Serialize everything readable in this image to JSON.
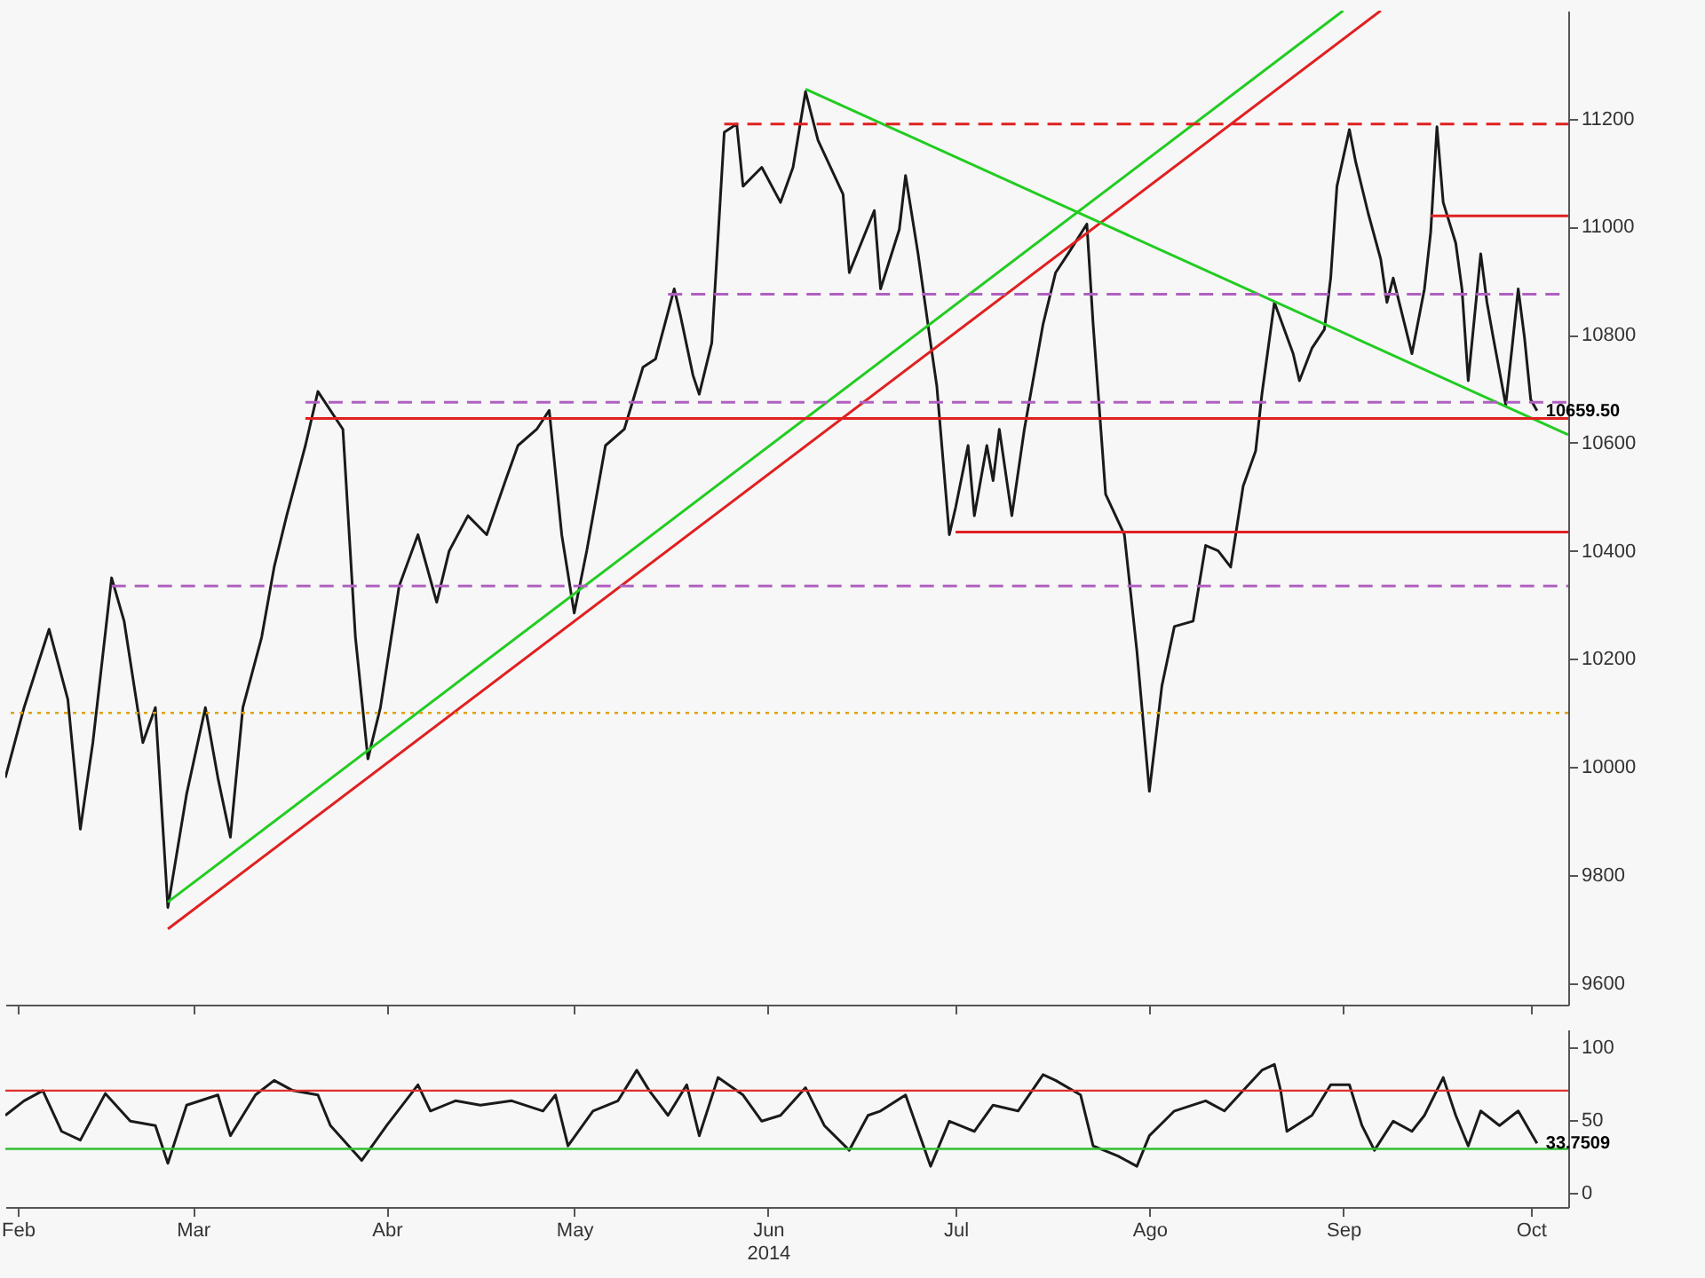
{
  "chart_data": [
    {
      "type": "line",
      "tick_labels": "y",
      "xlim": [
        "2014-01-30",
        "2014-10-07"
      ],
      "ylim": [
        9560,
        11400
      ],
      "xticks": [
        {
          "value": "2014-02-01",
          "label": null
        },
        {
          "value": "2014-03-01",
          "label": null
        },
        {
          "value": "2014-04-01",
          "label": null
        },
        {
          "value": "2014-05-01",
          "label": null
        },
        {
          "value": "2014-06-01",
          "label": null
        },
        {
          "value": "2014-07-01",
          "label": null
        },
        {
          "value": "2014-08-01",
          "label": null
        },
        {
          "value": "2014-09-01",
          "label": null
        },
        {
          "value": "2014-10-01",
          "label": null
        }
      ],
      "yticks": [
        9600,
        9800,
        10000,
        10200,
        10400,
        10600,
        10800,
        11000,
        11200
      ],
      "series": [
        {
          "color": "#1a1a1a",
          "x": [
            "2014-01-30",
            "2014-02-02",
            "2014-02-06",
            "2014-02-09",
            "2014-02-11",
            "2014-02-13",
            "2014-02-16",
            "2014-02-18",
            "2014-02-21",
            "2014-02-23",
            "2014-02-25",
            "2014-02-28",
            "2014-03-03",
            "2014-03-05",
            "2014-03-07",
            "2014-03-09",
            "2014-03-12",
            "2014-03-14",
            "2014-03-16",
            "2014-03-19",
            "2014-03-21",
            "2014-03-25",
            "2014-03-27",
            "2014-03-29",
            "2014-03-31",
            "2014-04-03",
            "2014-04-06",
            "2014-04-09",
            "2014-04-11",
            "2014-04-14",
            "2014-04-17",
            "2014-04-20",
            "2014-04-22",
            "2014-04-25",
            "2014-04-27",
            "2014-04-29",
            "2014-05-01",
            "2014-05-03",
            "2014-05-06",
            "2014-05-09",
            "2014-05-12",
            "2014-05-14",
            "2014-05-17",
            "2014-05-18",
            "2014-05-20",
            "2014-05-21",
            "2014-05-23",
            "2014-05-24",
            "2014-05-25",
            "2014-05-27",
            "2014-05-28",
            "2014-05-31",
            "2014-06-03",
            "2014-06-05",
            "2014-06-07",
            "2014-06-09",
            "2014-06-13",
            "2014-06-14",
            "2014-06-18",
            "2014-06-19",
            "2014-06-22",
            "2014-06-23",
            "2014-06-25",
            "2014-06-27",
            "2014-06-28",
            "2014-06-30",
            "2014-07-01",
            "2014-07-03",
            "2014-07-04",
            "2014-07-06",
            "2014-07-07",
            "2014-07-08",
            "2014-07-10",
            "2014-07-12",
            "2014-07-15",
            "2014-07-17",
            "2014-07-19",
            "2014-07-22",
            "2014-07-23",
            "2014-07-25",
            "2014-07-28",
            "2014-07-30",
            "2014-08-01",
            "2014-08-03",
            "2014-08-05",
            "2014-08-08",
            "2014-08-10",
            "2014-08-12",
            "2014-08-14",
            "2014-08-16",
            "2014-08-18",
            "2014-08-19",
            "2014-08-21",
            "2014-08-24",
            "2014-08-25",
            "2014-08-27",
            "2014-08-29",
            "2014-08-30",
            "2014-08-31",
            "2014-09-02",
            "2014-09-03",
            "2014-09-05",
            "2014-09-07",
            "2014-09-08",
            "2014-09-09",
            "2014-09-12",
            "2014-09-14",
            "2014-09-15",
            "2014-09-16",
            "2014-09-17",
            "2014-09-19",
            "2014-09-20",
            "2014-09-21",
            "2014-09-23",
            "2014-09-24",
            "2014-09-25",
            "2014-09-27",
            "2014-09-28",
            "2014-09-29",
            "2014-09-30",
            "2014-10-01",
            "2014-10-02"
          ],
          "values": [
            9980,
            10110,
            10255,
            10125,
            9885,
            10045,
            10350,
            10270,
            10045,
            10110,
            9740,
            9950,
            10110,
            9980,
            9870,
            10110,
            10240,
            10370,
            10465,
            10595,
            10695,
            10625,
            10240,
            10015,
            10110,
            10335,
            10430,
            10305,
            10400,
            10465,
            10430,
            10530,
            10595,
            10625,
            10660,
            10430,
            10285,
            10400,
            10595,
            10625,
            10740,
            10755,
            10885,
            10835,
            10725,
            10690,
            10785,
            10980,
            11175,
            11190,
            11075,
            11110,
            11045,
            11110,
            11250,
            11160,
            11060,
            10915,
            11030,
            10885,
            10995,
            11095,
            10950,
            10785,
            10705,
            10430,
            10480,
            10595,
            10465,
            10595,
            10530,
            10625,
            10465,
            10625,
            10820,
            10915,
            10950,
            11005,
            10820,
            10505,
            10430,
            10215,
            9955,
            10150,
            10260,
            10270,
            10410,
            10400,
            10370,
            10520,
            10585,
            10690,
            10860,
            10765,
            10715,
            10775,
            10810,
            10905,
            11075,
            11180,
            11120,
            11025,
            10940,
            10860,
            10905,
            10765,
            10885,
            10990,
            11185,
            11045,
            10970,
            10885,
            10715,
            10950,
            10860,
            10795,
            10670,
            10775,
            10885,
            10795,
            10680,
            10659.5
          ],
          "value_labels": [
            null,
            null,
            null,
            null,
            null,
            null,
            null,
            null,
            null,
            null,
            null,
            null,
            null,
            null,
            null,
            null,
            null,
            null,
            null,
            null,
            null,
            null,
            null,
            null,
            null,
            null,
            null,
            null,
            null,
            null,
            null,
            null,
            null,
            null,
            null,
            null,
            null,
            null,
            null,
            null,
            null,
            null,
            null,
            null,
            null,
            null,
            null,
            null,
            null,
            null,
            null,
            null,
            null,
            null,
            null,
            null,
            null,
            null,
            null,
            null,
            null,
            null,
            null,
            null,
            null,
            null,
            null,
            null,
            null,
            null,
            null,
            null,
            null,
            null,
            null,
            null,
            null,
            null,
            null,
            null,
            null,
            null,
            null,
            null,
            null,
            null,
            null,
            null,
            null,
            null,
            null,
            null,
            null,
            null,
            null,
            null,
            null,
            null,
            null,
            null,
            null,
            null,
            null,
            null,
            null,
            null,
            null,
            null,
            null,
            null,
            null,
            null,
            null,
            null,
            null,
            null,
            null,
            null,
            null,
            null,
            null,
            "10659.50"
          ]
        },
        {
          "color": "#22cc22",
          "x": [
            "2014-02-25",
            "2014-09-01"
          ],
          "values": [
            9750,
            11400
          ]
        },
        {
          "color": "#e02020",
          "x": [
            "2014-02-25",
            "2014-09-07"
          ],
          "values": [
            9700,
            11400
          ]
        },
        {
          "color": "#22cc22",
          "x": [
            "2014-06-07",
            "2014-10-07"
          ],
          "values": [
            11255,
            10615
          ]
        },
        {
          "color": "#e02020",
          "line_style": "dashed",
          "x": [
            "2014-05-25",
            "2014-10-07"
          ],
          "values": [
            11190,
            11190
          ]
        },
        {
          "color": "#e02020",
          "x": [
            "2014-09-15",
            "2014-10-07"
          ],
          "values": [
            11020,
            11020
          ]
        },
        {
          "color": "#b060c0",
          "line_style": "dashed",
          "x": [
            "2014-05-16",
            "2014-10-07"
          ],
          "values": [
            10875,
            10875
          ]
        },
        {
          "color": "#b060c0",
          "line_style": "dashed",
          "x": [
            "2014-03-19",
            "2014-10-07"
          ],
          "values": [
            10675,
            10675
          ]
        },
        {
          "color": "#e02020",
          "x": [
            "2014-03-19",
            "2014-10-07"
          ],
          "values": [
            10645,
            10645
          ]
        },
        {
          "color": "#e02020",
          "x": [
            "2014-07-01",
            "2014-10-07"
          ],
          "values": [
            10435,
            10435
          ]
        },
        {
          "color": "#b060c0",
          "line_style": "dashed",
          "x": [
            "2014-02-16",
            "2014-10-07"
          ],
          "values": [
            10335,
            10335
          ]
        }
      ],
      "ref_lines": [
        {
          "axis": "y",
          "value": 10100,
          "color": "#e0a000",
          "line_style": "dotted"
        }
      ]
    },
    {
      "type": "line",
      "xlim": [
        "2014-01-30",
        "2014-10-07"
      ],
      "ylim": [
        -10,
        112
      ],
      "xticks": [
        {
          "value": "2014-02-01",
          "label": "Feb"
        },
        {
          "value": "2014-03-01",
          "label": "Mar"
        },
        {
          "value": "2014-04-01",
          "label": "Abr"
        },
        {
          "value": "2014-05-01",
          "label": "May"
        },
        {
          "value": "2014-06-01",
          "label": "Jun\n2014"
        },
        {
          "value": "2014-07-01",
          "label": "Jul"
        },
        {
          "value": "2014-08-01",
          "label": "Ago"
        },
        {
          "value": "2014-09-01",
          "label": "Sep"
        },
        {
          "value": "2014-10-01",
          "label": "Oct"
        }
      ],
      "yticks": [
        0,
        50,
        100
      ],
      "series": [
        {
          "color": "#1a1a1a",
          "x": [
            "2014-01-30",
            "2014-02-02",
            "2014-02-05",
            "2014-02-08",
            "2014-02-11",
            "2014-02-15",
            "2014-02-19",
            "2014-02-23",
            "2014-02-25",
            "2014-02-28",
            "2014-03-05",
            "2014-03-07",
            "2014-03-11",
            "2014-03-14",
            "2014-03-17",
            "2014-03-21",
            "2014-03-23",
            "2014-03-28",
            "2014-04-01",
            "2014-04-06",
            "2014-04-08",
            "2014-04-12",
            "2014-04-16",
            "2014-04-21",
            "2014-04-26",
            "2014-04-28",
            "2014-04-30",
            "2014-05-04",
            "2014-05-08",
            "2014-05-11",
            "2014-05-13",
            "2014-05-16",
            "2014-05-19",
            "2014-05-21",
            "2014-05-24",
            "2014-05-28",
            "2014-05-31",
            "2014-06-03",
            "2014-06-07",
            "2014-06-10",
            "2014-06-14",
            "2014-06-17",
            "2014-06-19",
            "2014-06-23",
            "2014-06-27",
            "2014-06-30",
            "2014-07-04",
            "2014-07-07",
            "2014-07-11",
            "2014-07-15",
            "2014-07-17",
            "2014-07-21",
            "2014-07-23",
            "2014-07-27",
            "2014-07-30",
            "2014-08-01",
            "2014-08-05",
            "2014-08-10",
            "2014-08-13",
            "2014-08-16",
            "2014-08-19",
            "2014-08-21",
            "2014-08-22",
            "2014-08-23",
            "2014-08-27",
            "2014-08-30",
            "2014-09-02",
            "2014-09-04",
            "2014-09-06",
            "2014-09-09",
            "2014-09-12",
            "2014-09-14",
            "2014-09-17",
            "2014-09-19",
            "2014-09-21",
            "2014-09-23",
            "2014-09-26",
            "2014-09-29",
            "2014-10-02"
          ],
          "values": [
            53,
            63,
            70,
            42,
            36,
            68,
            49,
            46,
            20,
            60,
            67,
            39,
            67,
            77,
            70,
            67,
            46,
            22,
            46,
            74,
            56,
            63,
            60,
            63,
            56,
            67,
            32,
            56,
            63,
            84,
            70,
            53,
            74,
            39,
            79,
            67,
            49,
            53,
            72,
            46,
            29,
            53,
            56,
            67,
            18,
            49,
            42,
            60,
            56,
            81,
            77,
            67,
            32,
            25,
            18,
            39,
            56,
            63,
            56,
            70,
            84,
            88,
            70,
            42,
            53,
            74,
            74,
            46,
            29,
            49,
            42,
            53,
            79,
            53,
            32,
            56,
            46,
            56,
            33.7509
          ],
          "value_labels": [
            null,
            null,
            null,
            null,
            null,
            null,
            null,
            null,
            null,
            null,
            null,
            null,
            null,
            null,
            null,
            null,
            null,
            null,
            null,
            null,
            null,
            null,
            null,
            null,
            null,
            null,
            null,
            null,
            null,
            null,
            null,
            null,
            null,
            null,
            null,
            null,
            null,
            null,
            null,
            null,
            null,
            null,
            null,
            null,
            null,
            null,
            null,
            null,
            null,
            null,
            null,
            null,
            null,
            null,
            null,
            null,
            null,
            null,
            null,
            null,
            null,
            null,
            null,
            null,
            null,
            null,
            null,
            null,
            null,
            null,
            null,
            null,
            null,
            null,
            null,
            null,
            null,
            null,
            "33.7509"
          ]
        }
      ],
      "ref_lines": [
        {
          "axis": "y",
          "value": 70,
          "color": "#e03030",
          "line_style": "solid"
        },
        {
          "axis": "y",
          "value": 30,
          "color": "#30c030",
          "line_style": "solid"
        }
      ]
    }
  ]
}
